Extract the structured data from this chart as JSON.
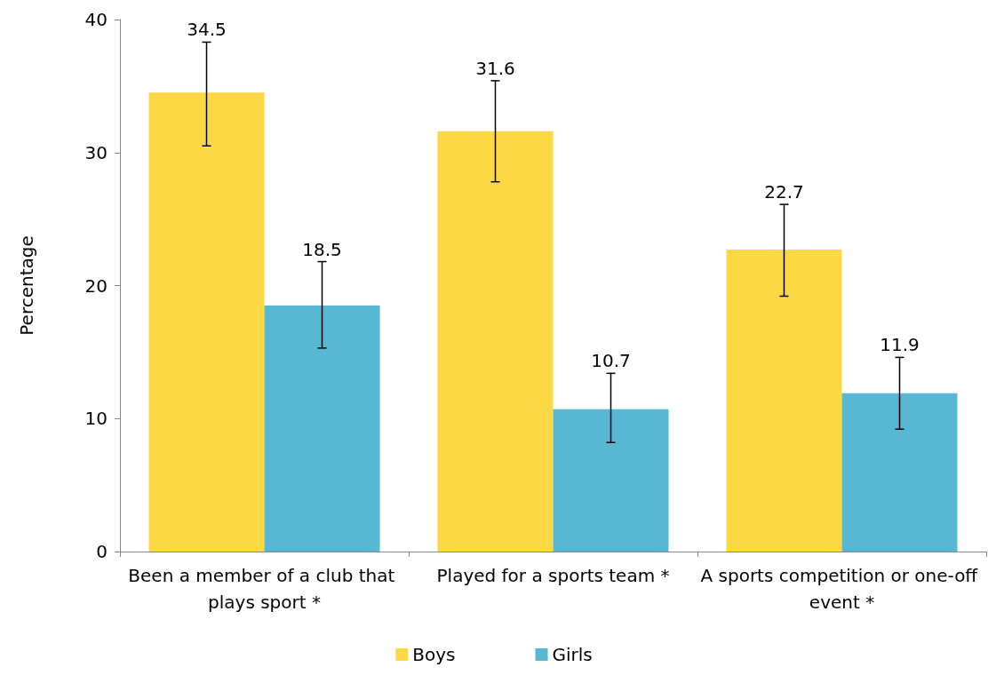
{
  "chart_data": {
    "type": "bar",
    "ylabel": "Percentage",
    "categories": [
      "Been a member of a club that plays sport *",
      "Played for a sports team *",
      "A sports competition or one-off event *"
    ],
    "series": [
      {
        "name": "Boys",
        "color": "#fdd845",
        "values": [
          34.5,
          31.6,
          22.7
        ],
        "errors": [
          [
            30.5,
            38.3
          ],
          [
            27.8,
            35.4
          ],
          [
            19.2,
            26.1
          ]
        ]
      },
      {
        "name": "Girls",
        "color": "#58b7d2",
        "values": [
          18.5,
          10.7,
          11.9
        ],
        "errors": [
          [
            15.3,
            21.8
          ],
          [
            8.2,
            13.4
          ],
          [
            9.2,
            14.6
          ]
        ]
      }
    ],
    "ylim": [
      0,
      40
    ],
    "yticks": [
      0,
      10,
      20,
      30,
      40
    ],
    "grid": false,
    "legend": "bottom",
    "data_labels": true
  }
}
